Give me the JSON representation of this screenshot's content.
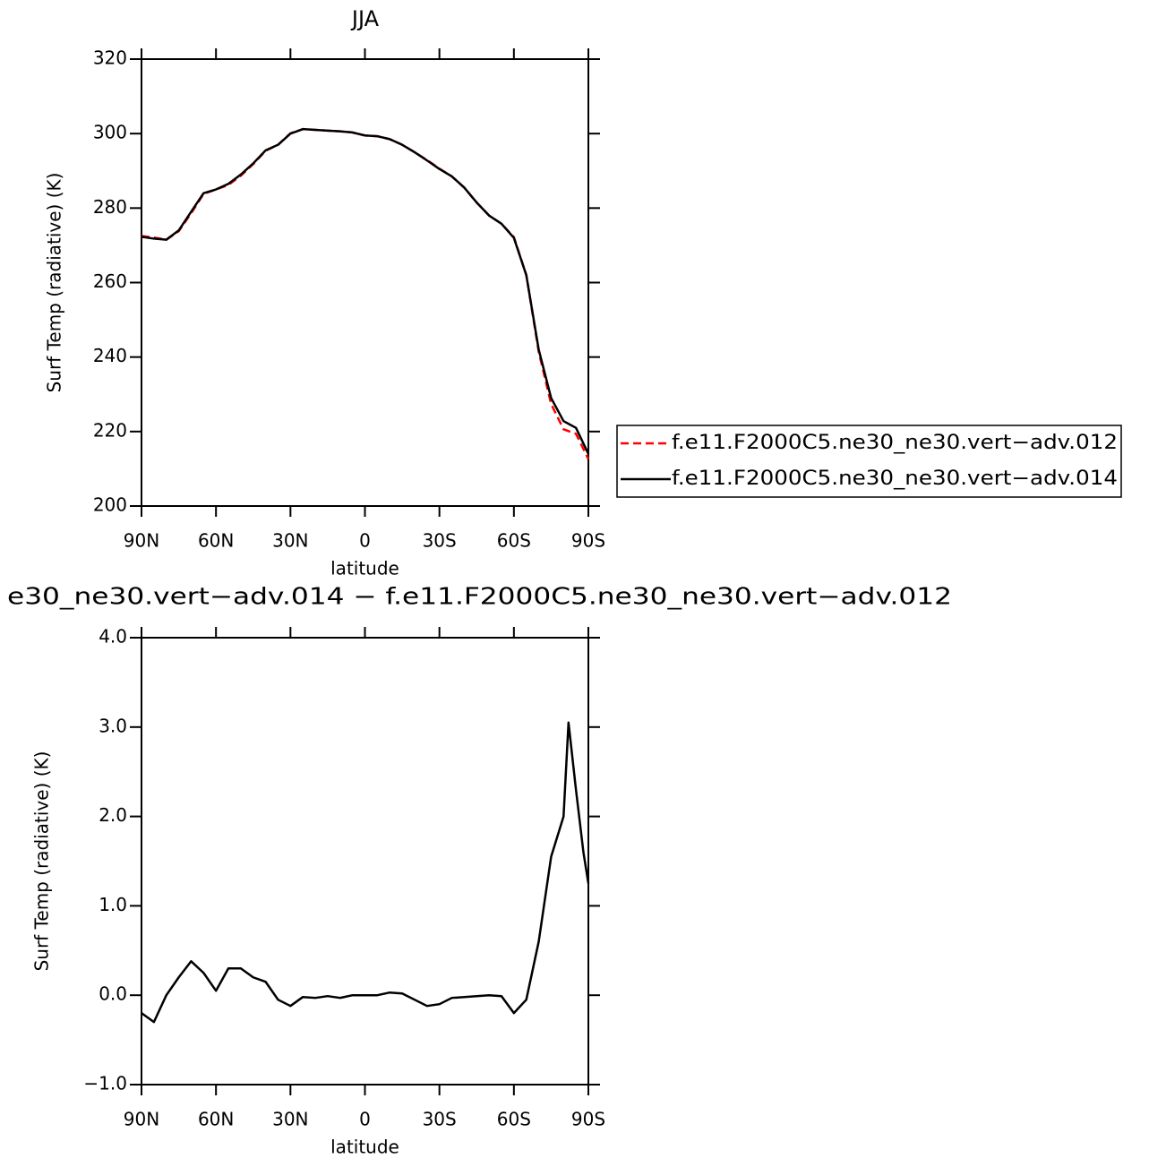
{
  "chart_data": [
    {
      "type": "line",
      "title": "JJA",
      "x_label": "latitude",
      "y_label": "Surf Temp (radiative) (K)",
      "x": [
        90,
        85,
        80,
        75,
        70,
        65,
        60,
        55,
        50,
        45,
        40,
        35,
        30,
        25,
        20,
        15,
        10,
        5,
        0,
        -5,
        -10,
        -15,
        -20,
        -25,
        -30,
        -35,
        -40,
        -45,
        -50,
        -55,
        -60,
        -65,
        -70,
        -75,
        -80,
        -85,
        -90
      ],
      "xlim": [
        90,
        -90
      ],
      "xticks": [
        {
          "value": 90,
          "label": "90N"
        },
        {
          "value": 60,
          "label": "60N"
        },
        {
          "value": 30,
          "label": "30N"
        },
        0,
        {
          "value": -30,
          "label": "30S"
        },
        {
          "value": -60,
          "label": "60S"
        },
        {
          "value": -90,
          "label": "90S"
        }
      ],
      "ylim": [
        200,
        320
      ],
      "yticks": [
        200,
        220,
        240,
        260,
        280,
        300,
        320
      ],
      "legend": "right",
      "series": [
        {
          "name": "f.e11.F2000C5.ne30_ne30.vert−adv.012",
          "color": "#ff0000",
          "dashed": true,
          "values": [
            272.5,
            272.1,
            271.5,
            273.8,
            278.6,
            283.8,
            285.0,
            286.2,
            288.7,
            291.8,
            295.4,
            297.0,
            300.1,
            301.2,
            301.0,
            300.8,
            300.6,
            300.3,
            299.5,
            299.3,
            298.5,
            297.0,
            295.0,
            292.9,
            290.6,
            288.5,
            285.5,
            281.5,
            278.0,
            275.8,
            272.2,
            262.0,
            241.4,
            227.4,
            220.6,
            219.4,
            212.6
          ]
        },
        {
          "name": "f.e11.F2000C5.ne30_ne30.vert−adv.014",
          "color": "#000000",
          "dashed": false,
          "values": [
            272.3,
            271.8,
            271.5,
            274.0,
            279.0,
            284.0,
            285.0,
            286.5,
            289.0,
            292.0,
            295.5,
            297.0,
            300.0,
            301.2,
            301.0,
            300.8,
            300.6,
            300.3,
            299.5,
            299.3,
            298.5,
            297.0,
            295.0,
            292.8,
            290.5,
            288.5,
            285.5,
            281.5,
            278.0,
            275.8,
            272.0,
            262.0,
            242.0,
            229.0,
            222.8,
            221.0,
            214.0
          ]
        }
      ]
    },
    {
      "type": "line",
      "title": "e30_ne30.vert−adv.014 − f.e11.F2000C5.ne30_ne30.vert−adv.012",
      "x_label": "latitude",
      "y_label": "Surf Temp (radiative) (K)",
      "x": [
        90,
        85,
        80,
        75,
        70,
        65,
        60,
        55,
        50,
        45,
        40,
        35,
        30,
        25,
        20,
        15,
        10,
        5,
        0,
        -5,
        -10,
        -15,
        -20,
        -25,
        -30,
        -35,
        -40,
        -45,
        -50,
        -55,
        -60,
        -65,
        -70,
        -75,
        -80,
        -82,
        -85,
        -88,
        -90
      ],
      "xlim": [
        90,
        -90
      ],
      "xticks": [
        {
          "value": 90,
          "label": "90N"
        },
        {
          "value": 60,
          "label": "60N"
        },
        {
          "value": 30,
          "label": "30N"
        },
        0,
        {
          "value": -30,
          "label": "30S"
        },
        {
          "value": -60,
          "label": "60S"
        },
        {
          "value": -90,
          "label": "90S"
        }
      ],
      "ylim": [
        -1,
        4
      ],
      "yticks": [
        {
          "value": -1,
          "label": "−1.0"
        },
        {
          "value": 0,
          "label": "0.0"
        },
        {
          "value": 1,
          "label": "1.0"
        },
        {
          "value": 2,
          "label": "2.0"
        },
        {
          "value": 3,
          "label": "3.0"
        },
        {
          "value": 4,
          "label": "4.0"
        }
      ],
      "color": "#000000",
      "values": [
        -0.2,
        -0.3,
        0.0,
        0.2,
        0.38,
        0.25,
        0.05,
        0.3,
        0.3,
        0.2,
        0.15,
        -0.05,
        -0.12,
        -0.02,
        -0.03,
        -0.01,
        -0.03,
        0.0,
        0.0,
        0.0,
        0.03,
        0.02,
        -0.05,
        -0.12,
        -0.1,
        -0.03,
        -0.02,
        -0.01,
        0.0,
        -0.01,
        -0.2,
        -0.05,
        0.6,
        1.55,
        2.0,
        3.05,
        2.3,
        1.6,
        1.25
      ]
    }
  ]
}
